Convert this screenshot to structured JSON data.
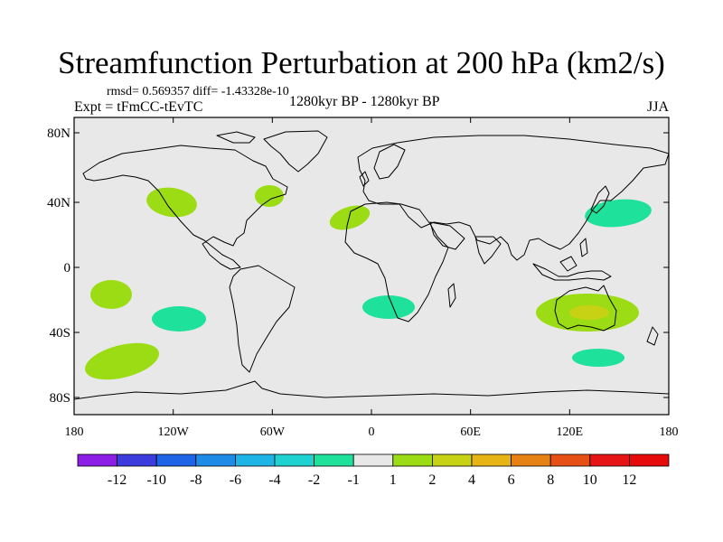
{
  "title": "Streamfunction Perturbation at 200 hPa (km2/s)",
  "stats": "rmsd= 0.569357 diff= -1.43328e-10",
  "experiment": "Expt = tFmCC-tEvTC",
  "period": "1280kyr BP - 1280kyr BP",
  "season": "JJA",
  "map": {
    "background_color": "#e8e8e8",
    "coastline_color": "#000000",
    "lat_labels": [
      "80N",
      "40N",
      "0",
      "40S",
      "80S"
    ],
    "lon_labels": [
      "180",
      "120W",
      "60W",
      "0",
      "60E",
      "120E",
      "180"
    ]
  },
  "colorbar": {
    "labels": [
      "-12",
      "-10",
      "-8",
      "-6",
      "-4",
      "-2",
      "-1",
      "1",
      "2",
      "4",
      "6",
      "8",
      "10",
      "12"
    ],
    "colors": [
      "#8c1ee6",
      "#3c3cdc",
      "#1e64e6",
      "#1e8ce6",
      "#1eb4e6",
      "#1ed2d2",
      "#1ee19b",
      "#e8e8e8",
      "#9bdc14",
      "#c8d214",
      "#e6b414",
      "#e68214",
      "#e65014",
      "#e61414",
      "#e60a0a"
    ]
  },
  "regions": [
    {
      "id": "n-pacific-east",
      "value": "1 to 2",
      "color": "#9bdc14"
    },
    {
      "id": "n-atlantic-west",
      "value": "1 to 2",
      "color": "#9bdc14"
    },
    {
      "id": "n-africa-west",
      "value": "1 to 2",
      "color": "#9bdc14"
    },
    {
      "id": "nw-pacific",
      "value": "-2 to -1",
      "color": "#1ee19b"
    },
    {
      "id": "s-pacific-west",
      "value": "1 to 2",
      "color": "#9bdc14"
    },
    {
      "id": "s-pacific-central",
      "value": "-2 to -1",
      "color": "#1ee19b"
    },
    {
      "id": "s-pacific-south",
      "value": "1 to 2",
      "color": "#9bdc14"
    },
    {
      "id": "s-atlantic",
      "value": "-2 to -1",
      "color": "#1ee19b"
    },
    {
      "id": "australia-outer",
      "value": "1 to 2",
      "color": "#9bdc14"
    },
    {
      "id": "australia-inner",
      "value": "2 to 4",
      "color": "#c8d214"
    },
    {
      "id": "southern-ocean-nz",
      "value": "-2 to -1",
      "color": "#1ee19b"
    }
  ]
}
